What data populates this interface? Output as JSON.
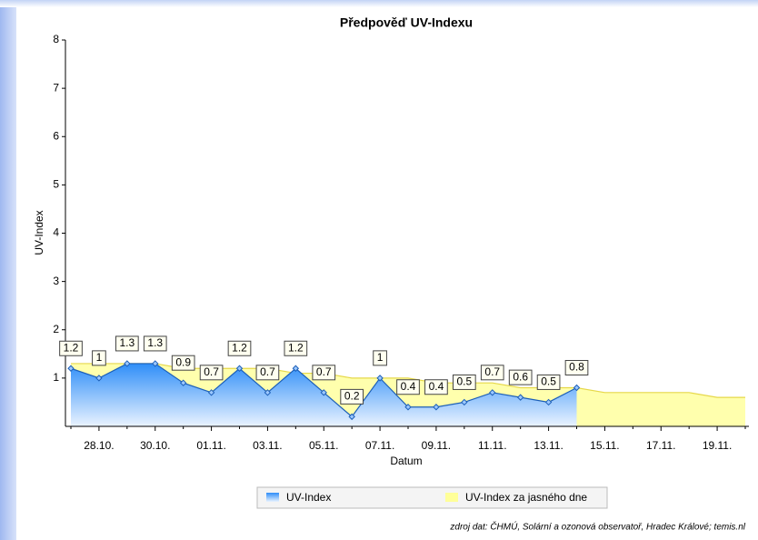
{
  "chart_data": {
    "type": "area",
    "title": "Předpověď UV-Indexu",
    "x_label": "Datum",
    "y_label": "UV-Index",
    "categories": [
      null,
      "28.10.",
      null,
      "30.10.",
      null,
      "01.11.",
      null,
      "03.11.",
      null,
      "05.11.",
      null,
      "07.11.",
      null,
      "09.11.",
      null,
      "11.11.",
      null,
      "13.11.",
      null,
      "15.11.",
      null,
      "17.11.",
      null,
      "19.11.",
      null
    ],
    "series": [
      {
        "name": "UV-Index za jasného dne",
        "color": "#ffff99",
        "values": [
          1.3,
          1.3,
          1.3,
          1.3,
          1.2,
          1.2,
          1.2,
          1.2,
          1.1,
          1.1,
          1.0,
          1.0,
          1.0,
          0.9,
          0.9,
          0.9,
          0.8,
          0.8,
          0.8,
          0.7,
          0.7,
          0.7,
          0.7,
          0.6,
          0.6
        ]
      },
      {
        "name": "UV-Index",
        "color": "#3399ff",
        "values": [
          1.2,
          1,
          1.3,
          1.3,
          0.9,
          0.7,
          1.2,
          0.7,
          1.2,
          0.7,
          0.2,
          1,
          0.4,
          0.4,
          0.5,
          0.7,
          0.6,
          0.5,
          0.8,
          null,
          null,
          null,
          null,
          null,
          null
        ]
      }
    ],
    "ylim": [
      0,
      8
    ],
    "yticks": [
      1,
      2,
      3,
      4,
      5,
      6,
      7,
      8
    ],
    "legend": "bottom",
    "source": "zdroj dat: ČHMÚ, Solární a ozonová observatoř, Hradec Králové; temis.nl"
  }
}
